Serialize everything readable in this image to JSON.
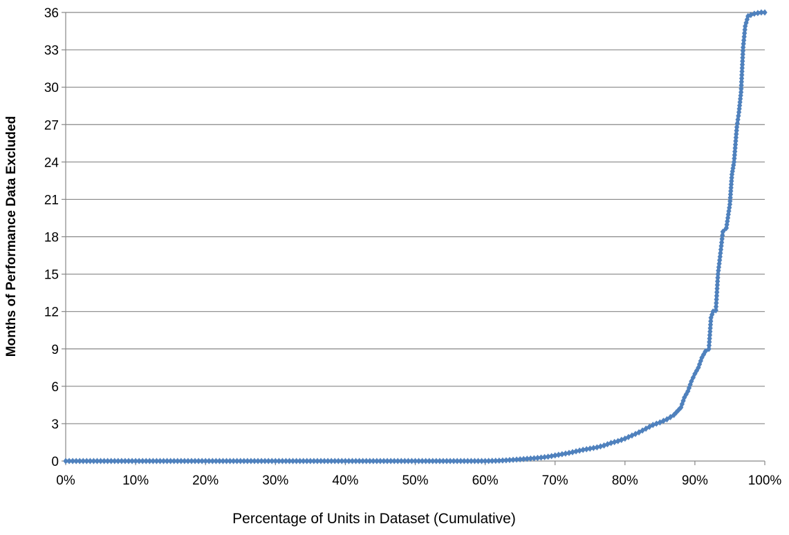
{
  "chart_data": {
    "type": "line",
    "title": "",
    "xlabel": "Percentage of Units in Dataset (Cumulative)",
    "ylabel": "Months of Performance Data Excluded",
    "xlim": [
      0,
      100
    ],
    "ylim": [
      0,
      36
    ],
    "x_ticks": [
      "0%",
      "10%",
      "20%",
      "30%",
      "40%",
      "50%",
      "60%",
      "70%",
      "80%",
      "90%",
      "100%"
    ],
    "y_ticks": [
      "0",
      "3",
      "6",
      "9",
      "12",
      "15",
      "18",
      "21",
      "24",
      "27",
      "30",
      "33",
      "36"
    ],
    "grid": "horizontal",
    "legend": "none",
    "color": "#4F81BD",
    "marker": "diamond",
    "series": [
      {
        "x": [
          0,
          5,
          10,
          15,
          20,
          25,
          30,
          35,
          40,
          45,
          50,
          55,
          58,
          60,
          62,
          63,
          64,
          65,
          66,
          67,
          68,
          69,
          70,
          71,
          72,
          73,
          74,
          75,
          76,
          77,
          78,
          79,
          80,
          81,
          82,
          83,
          84,
          85,
          86,
          87,
          88,
          88.5,
          89,
          89.5,
          90,
          90.5,
          91,
          91.5,
          92,
          92.3,
          92.6,
          93,
          93.3,
          93.6,
          94,
          94.5,
          95,
          95.3,
          95.6,
          96,
          96.3,
          96.6,
          96.9,
          97.2,
          97.6,
          98,
          98.5,
          99,
          99.5,
          100
        ],
        "values": [
          0,
          0,
          0,
          0,
          0,
          0,
          0,
          0,
          0,
          0,
          0,
          0,
          0,
          0,
          0.03,
          0.06,
          0.1,
          0.14,
          0.18,
          0.22,
          0.28,
          0.35,
          0.45,
          0.55,
          0.65,
          0.78,
          0.9,
          1.0,
          1.1,
          1.25,
          1.45,
          1.6,
          1.8,
          2.05,
          2.3,
          2.6,
          2.9,
          3.1,
          3.35,
          3.7,
          4.3,
          5.1,
          5.6,
          6.4,
          7.0,
          7.5,
          8.3,
          8.8,
          9.0,
          11.5,
          12.0,
          12.1,
          15.0,
          16.4,
          18.4,
          18.7,
          20.6,
          23.0,
          24.0,
          26.8,
          28.0,
          29.6,
          33.2,
          34.9,
          35.7,
          35.8,
          35.9,
          35.95,
          36.0,
          36.0
        ]
      }
    ]
  }
}
